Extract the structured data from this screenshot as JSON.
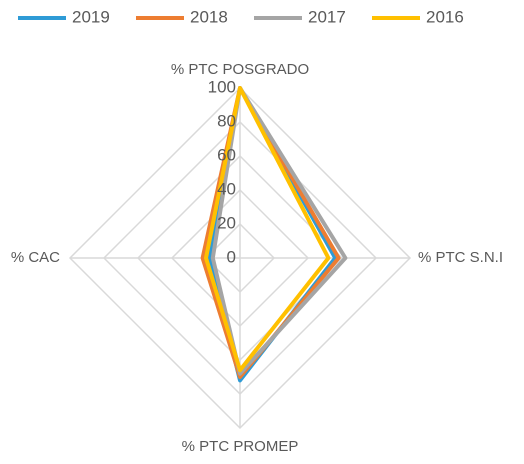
{
  "chart_data": {
    "type": "radar",
    "categories": [
      "% PTC POSGRADO",
      "% PTC S.N.I",
      "% PTC PROMEP",
      "% CAC"
    ],
    "series": [
      {
        "name": "2019",
        "color": "#2e9bd6",
        "values": [
          100,
          56,
          72,
          18
        ]
      },
      {
        "name": "2018",
        "color": "#ed7d31",
        "values": [
          100,
          58,
          70,
          22
        ]
      },
      {
        "name": "2017",
        "color": "#a5a5a5",
        "values": [
          100,
          62,
          68,
          16
        ]
      },
      {
        "name": "2016",
        "color": "#ffc000",
        "values": [
          100,
          52,
          66,
          20
        ]
      }
    ],
    "ylim": [
      0,
      100
    ],
    "yticks": [
      0,
      20,
      40,
      60,
      80,
      100
    ],
    "grid": true,
    "legend": "top"
  }
}
